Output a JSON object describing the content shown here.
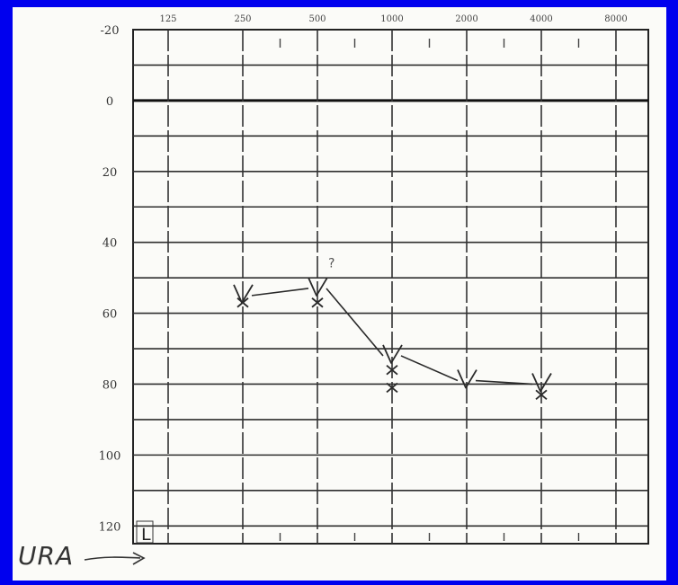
{
  "page": {
    "background": "#0000ee"
  },
  "chart_data": {
    "type": "scatter",
    "title": "",
    "xlabel": "",
    "ylabel": "",
    "x_scale": "log2",
    "x_ticks": [
      125,
      250,
      500,
      1000,
      2000,
      4000,
      8000
    ],
    "x_tick_labels": [
      "125",
      "250",
      "500",
      "1000",
      "2000",
      "4000",
      "8000"
    ],
    "y_ticks": [
      -20,
      0,
      20,
      40,
      60,
      80,
      100,
      120
    ],
    "y_tick_labels": [
      "-20",
      "0",
      "20",
      "40",
      "60",
      "80",
      "100",
      "120"
    ],
    "ylim": [
      -20,
      125
    ],
    "y_inverted": true,
    "grid": true,
    "ear_label": "L",
    "series": [
      {
        "marker": "V",
        "x": [
          250,
          500,
          1000,
          2000,
          4000
        ],
        "y": [
          55,
          53,
          72,
          79,
          80
        ],
        "connected": true
      },
      {
        "marker": "x",
        "x": [
          250,
          500,
          1000,
          1000,
          4000
        ],
        "y": [
          57,
          57,
          76,
          81,
          83
        ],
        "connected": false
      }
    ],
    "annotations": [
      {
        "text": "?",
        "x": 500,
        "y": 47
      }
    ]
  },
  "handwriting": {
    "note": "URA"
  },
  "colors": {
    "ink": "#2a2a2a",
    "pencil": "#555555"
  }
}
